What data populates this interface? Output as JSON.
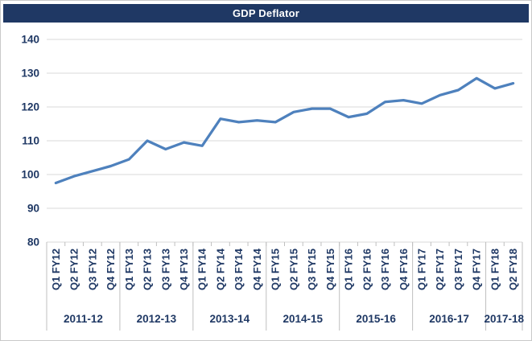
{
  "title_bar": {
    "label": "GDP Deflator",
    "background": "#1f3864",
    "text_color": "#ffffff"
  },
  "chart_data": {
    "type": "line",
    "title": "GDP Deflator",
    "xlabel": "",
    "ylabel": "",
    "categories": [
      "Q1 FY12",
      "Q2 FY12",
      "Q3 FY12",
      "Q4 FY12",
      "Q1 FY13",
      "Q2 FY13",
      "Q3 FY13",
      "Q4 FY13",
      "Q1 FY14",
      "Q2 FY14",
      "Q3 FY14",
      "Q4 FY14",
      "Q1 FY15",
      "Q2 FY15",
      "Q3 FY15",
      "Q4 FY15",
      "Q1 FY16",
      "Q2 FY16",
      "Q3 FY16",
      "Q4 FY16",
      "Q1 FY17",
      "Q2 FY17",
      "Q3 FY17",
      "Q4 FY17",
      "Q1 FY18",
      "Q2 FY18"
    ],
    "values": [
      97.5,
      99.5,
      101,
      102.5,
      104.5,
      110,
      107.5,
      109.5,
      108.5,
      116.5,
      115.5,
      116,
      115.5,
      118.5,
      119.5,
      119.5,
      117,
      118,
      121.5,
      122,
      121,
      123.5,
      125,
      128.5,
      125.5,
      127
    ],
    "year_groups": [
      {
        "label": "2011-12",
        "span": 4
      },
      {
        "label": "2012-13",
        "span": 4
      },
      {
        "label": "2013-14",
        "span": 4
      },
      {
        "label": "2014-15",
        "span": 4
      },
      {
        "label": "2015-16",
        "span": 4
      },
      {
        "label": "2016-17",
        "span": 4
      },
      {
        "label": "2017-18",
        "span": 2
      }
    ],
    "ylim": [
      80,
      140
    ],
    "ytick_step": 10,
    "yticks": [
      80,
      90,
      100,
      110,
      120,
      130,
      140
    ],
    "grid": true,
    "legend": "none",
    "line_color": "#4e81bd",
    "label_color": "#1f3864",
    "grid_color": "#d9d9d9",
    "axis_color": "#bfbfbf"
  }
}
